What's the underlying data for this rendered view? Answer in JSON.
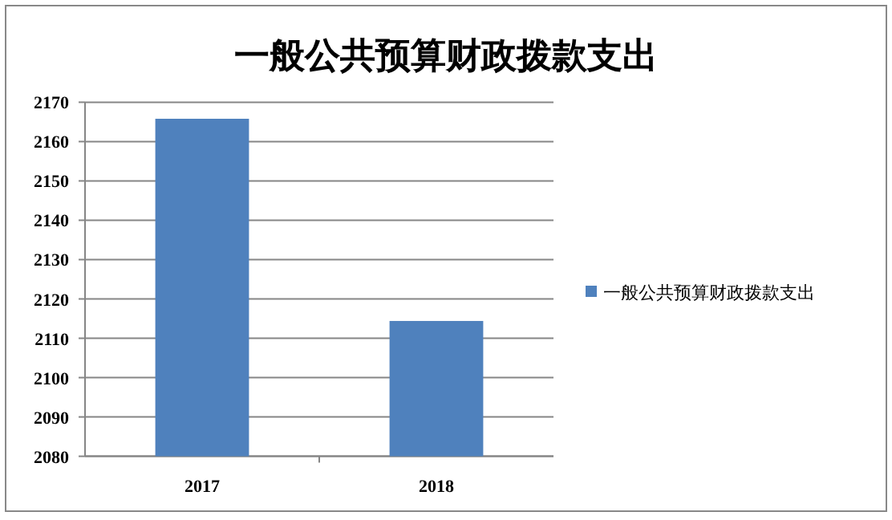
{
  "chart_data": {
    "type": "bar",
    "title": "一般公共预算财政拨款支出",
    "categories": [
      "2017",
      "2018"
    ],
    "series": [
      {
        "name": "一般公共预算财政拨款支出",
        "color": "#4f81bd",
        "values": [
          2165.8,
          2114.4
        ]
      }
    ],
    "ylim": [
      2080,
      2170
    ],
    "yticks": [
      2080,
      2090,
      2100,
      2110,
      2120,
      2130,
      2140,
      2150,
      2160,
      2170
    ],
    "grid": "y",
    "legend": "right"
  }
}
